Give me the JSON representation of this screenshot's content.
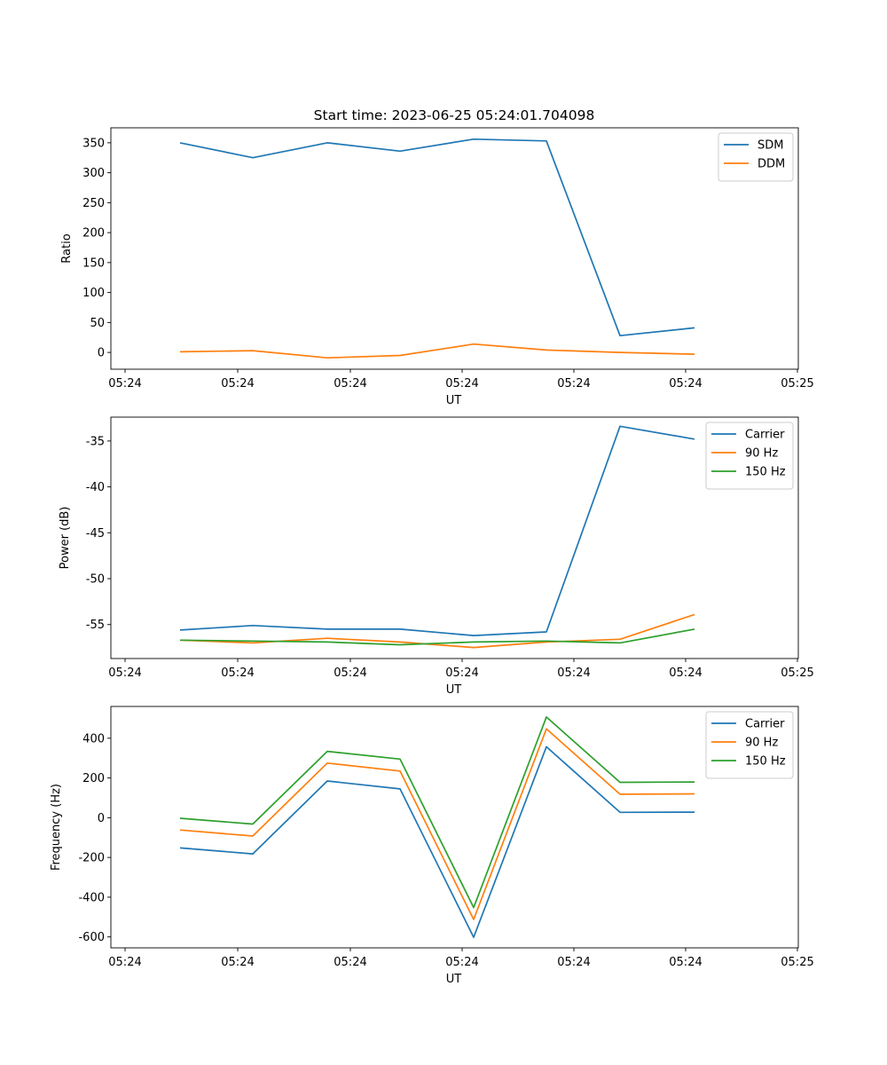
{
  "figure": {
    "title": "Start time: 2023-06-25 05:24:01.704098"
  },
  "chart_data": [
    {
      "type": "line",
      "title": "Start time: 2023-06-25 05:24:01.704098",
      "xlabel": "UT",
      "ylabel": "Ratio",
      "x_tick_labels": [
        "05:24",
        "05:24",
        "05:24",
        "05:24",
        "05:24",
        "05:24",
        "05:24"
      ],
      "x_tick_last": "05:25",
      "y_ticks": [
        0,
        50,
        100,
        150,
        200,
        250,
        300,
        350
      ],
      "ylim": [
        -28,
        375
      ],
      "legend_position": "upper right",
      "series": [
        {
          "name": "SDM",
          "color": "#1f77b4",
          "values": [
            350,
            325,
            350,
            336,
            356,
            353,
            28,
            41
          ]
        },
        {
          "name": "DDM",
          "color": "#ff7f0e",
          "values": [
            1,
            3,
            -9,
            -5,
            14,
            4,
            0,
            -3
          ]
        }
      ]
    },
    {
      "type": "line",
      "title": "",
      "xlabel": "UT",
      "ylabel": "Power (dB)",
      "x_tick_labels": [
        "05:24",
        "05:24",
        "05:24",
        "05:24",
        "05:24",
        "05:24",
        "05:24"
      ],
      "x_tick_last": "05:25",
      "y_ticks": [
        -55,
        -50,
        -45,
        -40,
        -35
      ],
      "ylim": [
        -58.7,
        -32.4
      ],
      "legend_position": "upper right",
      "series": [
        {
          "name": "Carrier",
          "color": "#1f77b4",
          "values": [
            -55.6,
            -55.1,
            -55.5,
            -55.5,
            -56.2,
            -55.8,
            -33.4,
            -34.8
          ]
        },
        {
          "name": "90 Hz",
          "color": "#ff7f0e",
          "values": [
            -56.7,
            -57.0,
            -56.5,
            -56.9,
            -57.5,
            -56.9,
            -56.6,
            -53.9
          ]
        },
        {
          "name": "150 Hz",
          "color": "#2ca02c",
          "values": [
            -56.7,
            -56.8,
            -56.9,
            -57.2,
            -56.9,
            -56.8,
            -57.0,
            -55.5
          ]
        }
      ]
    },
    {
      "type": "line",
      "title": "",
      "xlabel": "UT",
      "ylabel": "Frequency (Hz)",
      "x_tick_labels": [
        "05:24",
        "05:24",
        "05:24",
        "05:24",
        "05:24",
        "05:24",
        "05:24"
      ],
      "x_tick_last": "05:25",
      "y_ticks": [
        -600,
        -400,
        -200,
        0,
        200,
        400
      ],
      "ylim": [
        -655,
        560
      ],
      "legend_position": "upper right",
      "series": [
        {
          "name": "Carrier",
          "color": "#1f77b4",
          "values": [
            -152,
            -182,
            185,
            145,
            -602,
            357,
            27,
            28
          ]
        },
        {
          "name": "90 Hz",
          "color": "#ff7f0e",
          "values": [
            -62,
            -92,
            275,
            235,
            -512,
            447,
            118,
            120
          ]
        },
        {
          "name": "150 Hz",
          "color": "#2ca02c",
          "values": [
            -3,
            -32,
            334,
            295,
            -452,
            507,
            178,
            180
          ]
        }
      ]
    }
  ]
}
